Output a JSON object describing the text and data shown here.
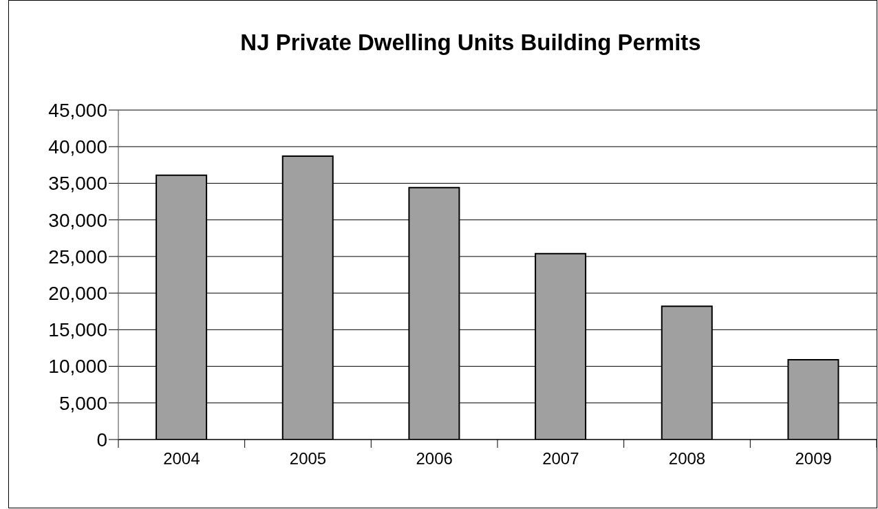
{
  "chart_data": {
    "type": "bar",
    "title": "NJ Private Dwelling Units Building Permits",
    "categories": [
      "2004",
      "2005",
      "2006",
      "2007",
      "2008",
      "2009"
    ],
    "values": [
      36100,
      38700,
      34400,
      25400,
      18200,
      10900
    ],
    "color": "#a0a0a0",
    "ylim": [
      0,
      45000
    ],
    "yticks": [
      0,
      {
        "value": 5000,
        "label": "5,000"
      },
      {
        "value": 10000,
        "label": "10,000"
      },
      {
        "value": 15000,
        "label": "15,000"
      },
      {
        "value": 20000,
        "label": "20,000"
      },
      {
        "value": 25000,
        "label": "25,000"
      },
      {
        "value": 30000,
        "label": "30,000"
      },
      {
        "value": 35000,
        "label": "35,000"
      },
      {
        "value": 40000,
        "label": "40,000"
      },
      {
        "value": 45000,
        "label": "45,000"
      }
    ],
    "grid": "y"
  }
}
